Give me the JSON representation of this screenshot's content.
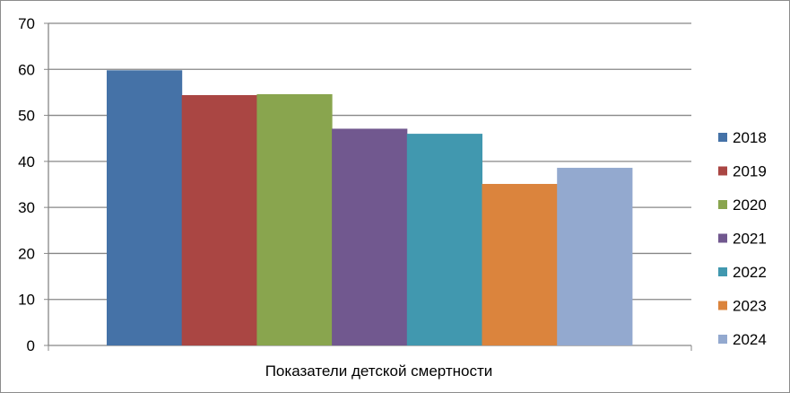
{
  "chart_data": {
    "type": "bar",
    "title": "",
    "xlabel": "",
    "ylabel": "",
    "categories": [
      "Показатели детской смертности"
    ],
    "ylim": [
      0,
      70
    ],
    "yticks": [
      0,
      10,
      20,
      30,
      40,
      50,
      60,
      70
    ],
    "grid": true,
    "legend_position": "right",
    "series": [
      {
        "name": "2018",
        "values": [
          59.8
        ],
        "color": "#4572A7"
      },
      {
        "name": "2019",
        "values": [
          54.4
        ],
        "color": "#AA4643"
      },
      {
        "name": "2020",
        "values": [
          54.6
        ],
        "color": "#89A54E"
      },
      {
        "name": "2021",
        "values": [
          47.1
        ],
        "color": "#71588F"
      },
      {
        "name": "2022",
        "values": [
          46.0
        ],
        "color": "#4198AF"
      },
      {
        "name": "2023",
        "values": [
          35.1
        ],
        "color": "#DB843D"
      },
      {
        "name": "2024",
        "values": [
          38.6
        ],
        "color": "#93A9CF"
      }
    ]
  }
}
